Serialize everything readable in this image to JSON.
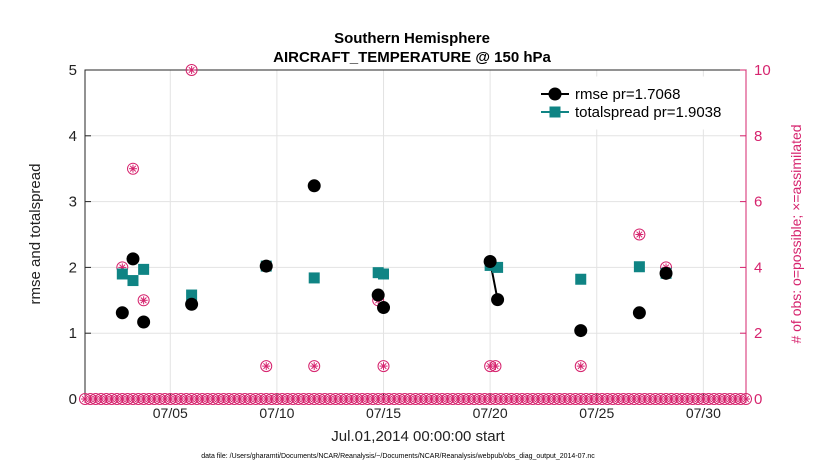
{
  "chart_data": {
    "type": "scatter",
    "title": "Southern Hemisphere",
    "subtitle": "AIRCRAFT_TEMPERATURE @ 150 hPa",
    "xlabel": "Jul.01,2014 00:00:00 start",
    "ylabel": "rmse and totalspread",
    "ylabel_right": "# of obs: o=possible; ×=assimilated",
    "footnote": "data file: /Users/gharamti/Documents/NCAR/Reanalysis/~/Documents/NCAR/Reanalysis/webpub/obs_diag_output_2014-07.nc",
    "xlim": [
      1.0,
      32.0
    ],
    "ylim": [
      0,
      5
    ],
    "ylim_right": [
      0,
      10
    ],
    "xticks": [
      5,
      10,
      15,
      20,
      25,
      30
    ],
    "xtick_labels": [
      "07/05",
      "07/10",
      "07/15",
      "07/20",
      "07/25",
      "07/30"
    ],
    "yticks_left": [
      "0",
      "1",
      "2",
      "3",
      "4",
      "5"
    ],
    "yticks_right": [
      "0",
      "2",
      "4",
      "6",
      "8",
      "10"
    ],
    "grid": true,
    "legend_position": "top-right",
    "series": [
      {
        "name": "rmse",
        "legend": "rmse pr=1.7068",
        "color": "#000000",
        "marker": "circle",
        "axis": "left",
        "points": [
          [
            2.75,
            1.31
          ],
          [
            3.25,
            2.13
          ],
          [
            3.75,
            1.17
          ],
          [
            6.0,
            1.44
          ],
          [
            9.5,
            2.02
          ],
          [
            11.75,
            3.24
          ],
          [
            14.75,
            1.58
          ],
          [
            15.0,
            1.39
          ],
          [
            20.0,
            2.09
          ],
          [
            20.35,
            1.51
          ],
          [
            24.25,
            1.04
          ],
          [
            27.0,
            1.31
          ],
          [
            28.25,
            1.91
          ]
        ],
        "segments": [
          [
            [
              20.0,
              2.09
            ],
            [
              20.35,
              1.51
            ]
          ]
        ]
      },
      {
        "name": "totalspread",
        "legend": "totalspread pr=1.9038",
        "color": "#0f8484",
        "marker": "square",
        "axis": "left",
        "points": [
          [
            2.75,
            1.9
          ],
          [
            3.25,
            1.8
          ],
          [
            3.75,
            1.97
          ],
          [
            6.0,
            1.58
          ],
          [
            9.5,
            2.02
          ],
          [
            11.75,
            1.84
          ],
          [
            14.75,
            1.92
          ],
          [
            15.0,
            1.9
          ],
          [
            20.0,
            2.03
          ],
          [
            20.35,
            2.0
          ],
          [
            24.25,
            1.82
          ],
          [
            27.0,
            2.01
          ],
          [
            28.25,
            1.91
          ]
        ],
        "segments": [
          [
            [
              20.0,
              2.03
            ],
            [
              20.35,
              2.0
            ]
          ]
        ]
      },
      {
        "name": "possible obs",
        "color": "#d6246e",
        "marker": "circle-open",
        "axis": "right",
        "points": [
          [
            2.75,
            4
          ],
          [
            3.25,
            7
          ],
          [
            3.75,
            3
          ],
          [
            6.0,
            10
          ],
          [
            9.5,
            1
          ],
          [
            11.75,
            1
          ],
          [
            14.75,
            3
          ],
          [
            15.0,
            1
          ],
          [
            20.0,
            1
          ],
          [
            20.25,
            1
          ],
          [
            24.25,
            1
          ],
          [
            27.0,
            5
          ],
          [
            28.25,
            4
          ]
        ]
      },
      {
        "name": "assimilated obs",
        "color": "#d6246e",
        "marker": "star",
        "axis": "right",
        "points": [
          [
            2.75,
            4
          ],
          [
            3.25,
            7
          ],
          [
            3.75,
            3
          ],
          [
            6.0,
            10
          ],
          [
            9.5,
            1
          ],
          [
            11.75,
            1
          ],
          [
            14.75,
            3
          ],
          [
            15.0,
            1
          ],
          [
            20.0,
            1
          ],
          [
            20.25,
            1
          ],
          [
            24.25,
            1
          ],
          [
            27.0,
            5
          ],
          [
            28.25,
            4
          ]
        ]
      }
    ],
    "zero_count": {
      "name": "zero obs",
      "value": 0,
      "start": 1.0,
      "end": 32.0,
      "step": 0.25
    }
  }
}
